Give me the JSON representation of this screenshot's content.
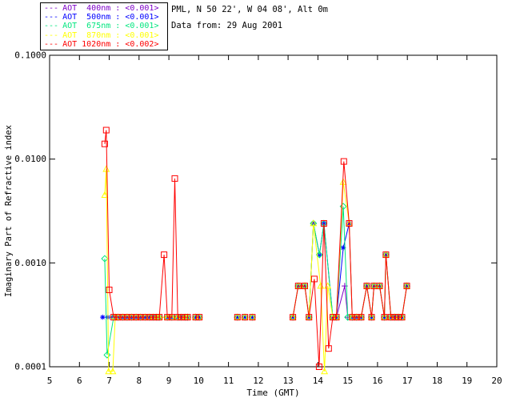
{
  "header": {
    "line1": "PML, N 50 22', W 04 08', Alt 0m",
    "line2": "Data from: 29 Aug 2001"
  },
  "legend": {
    "dash_sample": "---",
    "items": [
      {
        "label": "AOT  400nm : <0.001>",
        "series": "400nm",
        "color": "#7d00c8"
      },
      {
        "label": "AOT  500nm : <0.001>",
        "series": "500nm",
        "color": "#0000ff"
      },
      {
        "label": "AOT  675nm : <0.001>",
        "series": "675nm",
        "color": "#00e67e"
      },
      {
        "label": "AOT  870nm : <0.001>",
        "series": "870nm",
        "color": "#ffff00"
      },
      {
        "label": "AOT 1020nm : <0.002>",
        "series": "1020nm",
        "color": "#ff0000"
      }
    ]
  },
  "chart_data": {
    "type": "line",
    "title": "",
    "xlabel": "Time (GMT)",
    "ylabel": "Imaginary Part of Refractive index",
    "xlim": [
      5,
      20
    ],
    "ylim": [
      0.0001,
      0.1
    ],
    "yscale": "log",
    "grid": false,
    "legend_position": "top-left-outside",
    "xticks": [
      5,
      6,
      7,
      8,
      9,
      10,
      11,
      12,
      13,
      14,
      15,
      16,
      17,
      18,
      19,
      20
    ],
    "yticks": [
      {
        "v": 0.1,
        "label": "0.1000"
      },
      {
        "v": 0.01,
        "label": "0.0100"
      },
      {
        "v": 0.001,
        "label": "0.0010"
      },
      {
        "v": 0.0001,
        "label": "0.0001"
      }
    ],
    "series": [
      {
        "name": "AOT 400nm",
        "color": "#7d00c8",
        "marker": "plus",
        "segments": [
          [
            [
              14.62,
              0.0003
            ],
            [
              14.9,
              0.0006
            ],
            [
              15.0,
              0.0003
            ]
          ]
        ]
      },
      {
        "name": "AOT 500nm",
        "color": "#0000ff",
        "marker": "asterisk",
        "segments": [
          [
            [
              6.78,
              0.0003
            ],
            [
              6.95,
              0.0003
            ],
            [
              7.15,
              0.0003
            ],
            [
              7.3,
              0.0003
            ],
            [
              7.45,
              0.0003
            ],
            [
              7.6,
              0.0003
            ],
            [
              7.75,
              0.0003
            ],
            [
              7.9,
              0.0003
            ],
            [
              8.05,
              0.0003
            ],
            [
              8.2,
              0.0003
            ]
          ],
          [
            [
              8.35,
              0.0003
            ],
            [
              8.47,
              0.0003
            ],
            [
              8.59,
              0.0003
            ],
            [
              8.68,
              0.0003
            ],
            [
              8.95,
              0.0003
            ],
            [
              9.1,
              0.0003
            ],
            [
              9.3,
              0.0003
            ],
            [
              9.42,
              0.0003
            ],
            [
              9.54,
              0.0003
            ],
            [
              9.63,
              0.0003
            ]
          ],
          [
            [
              9.9,
              0.0003
            ],
            [
              10.02,
              0.0003
            ]
          ],
          [
            [
              11.3,
              0.0003
            ]
          ],
          [
            [
              11.55,
              0.0003
            ]
          ],
          [
            [
              11.8,
              0.0003
            ]
          ],
          [
            [
              13.16,
              0.0003
            ],
            [
              13.34,
              0.0006
            ],
            [
              13.56,
              0.0006
            ],
            [
              13.7,
              0.0003
            ],
            [
              13.85,
              0.0024
            ],
            [
              14.05,
              0.0012
            ],
            [
              14.2,
              0.0024
            ],
            [
              14.5,
              0.0003
            ],
            [
              14.62,
              0.0003
            ],
            [
              14.85,
              0.0014
            ],
            [
              15.05,
              0.0024
            ],
            [
              15.15,
              0.0003
            ],
            [
              15.3,
              0.0003
            ],
            [
              15.45,
              0.0003
            ],
            [
              15.64,
              0.0006
            ],
            [
              15.8,
              0.0003
            ],
            [
              15.88,
              0.0006
            ],
            [
              16.07,
              0.0006
            ],
            [
              16.23,
              0.0003
            ],
            [
              16.28,
              0.0012
            ],
            [
              16.45,
              0.0003
            ],
            [
              16.58,
              0.0003
            ],
            [
              16.7,
              0.0003
            ],
            [
              16.82,
              0.0003
            ],
            [
              16.98,
              0.0006
            ]
          ]
        ]
      },
      {
        "name": "AOT 675nm",
        "color": "#00e67e",
        "marker": "diamond",
        "segments": [
          [
            [
              6.85,
              0.0011
            ],
            [
              6.93,
              0.00013
            ],
            [
              7.15,
              0.0003
            ],
            [
              7.3,
              0.0003
            ],
            [
              7.45,
              0.0003
            ],
            [
              7.6,
              0.0003
            ],
            [
              7.75,
              0.0003
            ],
            [
              7.9,
              0.0003
            ],
            [
              8.05,
              0.0003
            ],
            [
              8.2,
              0.0003
            ]
          ],
          [
            [
              8.35,
              0.0003
            ],
            [
              8.47,
              0.0003
            ],
            [
              8.59,
              0.0003
            ],
            [
              8.68,
              0.0003
            ],
            [
              8.95,
              0.0003
            ],
            [
              9.1,
              0.0003
            ],
            [
              9.3,
              0.0003
            ],
            [
              9.42,
              0.0003
            ],
            [
              9.54,
              0.0003
            ],
            [
              9.63,
              0.0003
            ]
          ],
          [
            [
              9.9,
              0.0003
            ],
            [
              10.02,
              0.0003
            ]
          ],
          [
            [
              11.3,
              0.0003
            ]
          ],
          [
            [
              11.55,
              0.0003
            ]
          ],
          [
            [
              11.8,
              0.0003
            ]
          ],
          [
            [
              13.16,
              0.0003
            ],
            [
              13.34,
              0.0006
            ],
            [
              13.56,
              0.0006
            ],
            [
              13.7,
              0.0003
            ],
            [
              13.85,
              0.0024
            ],
            [
              14.05,
              0.0012
            ],
            [
              14.2,
              0.0024
            ],
            [
              14.5,
              0.0003
            ],
            [
              14.62,
              0.0003
            ],
            [
              14.85,
              0.0035
            ],
            [
              15.0,
              0.0003
            ],
            [
              15.15,
              0.0003
            ],
            [
              15.3,
              0.0003
            ],
            [
              15.45,
              0.0003
            ],
            [
              15.64,
              0.0006
            ],
            [
              15.8,
              0.0003
            ],
            [
              15.88,
              0.0006
            ],
            [
              16.07,
              0.0006
            ],
            [
              16.23,
              0.0003
            ],
            [
              16.28,
              0.0012
            ],
            [
              16.45,
              0.0003
            ],
            [
              16.58,
              0.0003
            ],
            [
              16.7,
              0.0003
            ],
            [
              16.82,
              0.0003
            ],
            [
              16.98,
              0.0006
            ]
          ]
        ]
      },
      {
        "name": "AOT 870nm",
        "color": "#ffff00",
        "marker": "triangle",
        "segments": [
          [
            [
              6.85,
              0.0045
            ],
            [
              6.9,
              0.008
            ],
            [
              6.98,
              9e-05
            ],
            [
              7.12,
              9e-05
            ],
            [
              7.2,
              0.0003
            ],
            [
              7.3,
              0.0003
            ],
            [
              7.45,
              0.0003
            ],
            [
              7.6,
              0.0003
            ],
            [
              7.75,
              0.0003
            ],
            [
              7.9,
              0.0003
            ],
            [
              8.05,
              0.0003
            ],
            [
              8.2,
              0.0003
            ]
          ],
          [
            [
              8.35,
              0.0003
            ],
            [
              8.47,
              0.0003
            ],
            [
              8.59,
              0.0003
            ],
            [
              8.68,
              0.0003
            ],
            [
              8.95,
              0.0003
            ],
            [
              9.1,
              0.0003
            ],
            [
              9.3,
              0.0003
            ],
            [
              9.42,
              0.0003
            ],
            [
              9.54,
              0.0003
            ],
            [
              9.63,
              0.0003
            ]
          ],
          [
            [
              9.9,
              0.0003
            ],
            [
              10.02,
              0.0003
            ]
          ],
          [
            [
              11.3,
              0.0003
            ]
          ],
          [
            [
              11.55,
              0.0003
            ]
          ],
          [
            [
              11.8,
              0.0003
            ]
          ],
          [
            [
              13.16,
              0.0003
            ],
            [
              13.34,
              0.0006
            ],
            [
              13.56,
              0.0006
            ],
            [
              13.7,
              0.0003
            ],
            [
              13.85,
              0.0024
            ],
            [
              14.09,
              0.0006
            ],
            [
              14.22,
              9e-05
            ],
            [
              14.33,
              0.0006
            ],
            [
              14.5,
              0.0003
            ],
            [
              14.62,
              0.0003
            ],
            [
              14.85,
              0.006
            ],
            [
              15.05,
              0.0024
            ],
            [
              15.15,
              0.0003
            ],
            [
              15.3,
              0.0003
            ],
            [
              15.45,
              0.0003
            ],
            [
              15.64,
              0.0006
            ],
            [
              15.8,
              0.0003
            ],
            [
              15.88,
              0.0006
            ],
            [
              16.07,
              0.0006
            ],
            [
              16.23,
              0.0003
            ],
            [
              16.28,
              0.0012
            ],
            [
              16.45,
              0.0003
            ],
            [
              16.58,
              0.0003
            ],
            [
              16.7,
              0.0003
            ],
            [
              16.82,
              0.0003
            ],
            [
              16.98,
              0.0006
            ]
          ]
        ]
      },
      {
        "name": "AOT 1020nm",
        "color": "#ff0000",
        "marker": "square",
        "segments": [
          [
            [
              6.85,
              0.014
            ],
            [
              6.9,
              0.019
            ],
            [
              7.0,
              0.00055
            ],
            [
              7.15,
              0.0003
            ],
            [
              7.3,
              0.0003
            ],
            [
              7.45,
              0.0003
            ],
            [
              7.6,
              0.0003
            ],
            [
              7.75,
              0.0003
            ],
            [
              7.9,
              0.0003
            ],
            [
              8.05,
              0.0003
            ],
            [
              8.2,
              0.0003
            ]
          ],
          [
            [
              8.35,
              0.0003
            ],
            [
              8.47,
              0.0003
            ],
            [
              8.59,
              0.0003
            ],
            [
              8.68,
              0.0003
            ],
            [
              8.84,
              0.0012
            ],
            [
              8.95,
              0.0003
            ],
            [
              9.1,
              0.0003
            ],
            [
              9.2,
              0.0065
            ],
            [
              9.3,
              0.0003
            ],
            [
              9.42,
              0.0003
            ],
            [
              9.54,
              0.0003
            ],
            [
              9.63,
              0.0003
            ]
          ],
          [
            [
              9.9,
              0.0003
            ],
            [
              10.02,
              0.0003
            ]
          ],
          [
            [
              11.3,
              0.0003
            ]
          ],
          [
            [
              11.55,
              0.0003
            ]
          ],
          [
            [
              11.8,
              0.0003
            ]
          ],
          [
            [
              13.16,
              0.0003
            ],
            [
              13.34,
              0.0006
            ],
            [
              13.56,
              0.0006
            ],
            [
              13.7,
              0.0003
            ],
            [
              13.88,
              0.0007
            ],
            [
              14.04,
              0.0001
            ],
            [
              14.2,
              0.0024
            ],
            [
              14.36,
              0.00015
            ],
            [
              14.5,
              0.0003
            ],
            [
              14.62,
              0.0003
            ],
            [
              14.87,
              0.0095
            ],
            [
              15.05,
              0.0024
            ],
            [
              15.15,
              0.0003
            ],
            [
              15.3,
              0.0003
            ],
            [
              15.45,
              0.0003
            ],
            [
              15.64,
              0.0006
            ],
            [
              15.8,
              0.0003
            ],
            [
              15.88,
              0.0006
            ],
            [
              16.07,
              0.0006
            ],
            [
              16.23,
              0.0003
            ],
            [
              16.28,
              0.0012
            ],
            [
              16.45,
              0.0003
            ],
            [
              16.58,
              0.0003
            ],
            [
              16.7,
              0.0003
            ],
            [
              16.82,
              0.0003
            ],
            [
              16.98,
              0.0006
            ]
          ]
        ]
      }
    ]
  }
}
